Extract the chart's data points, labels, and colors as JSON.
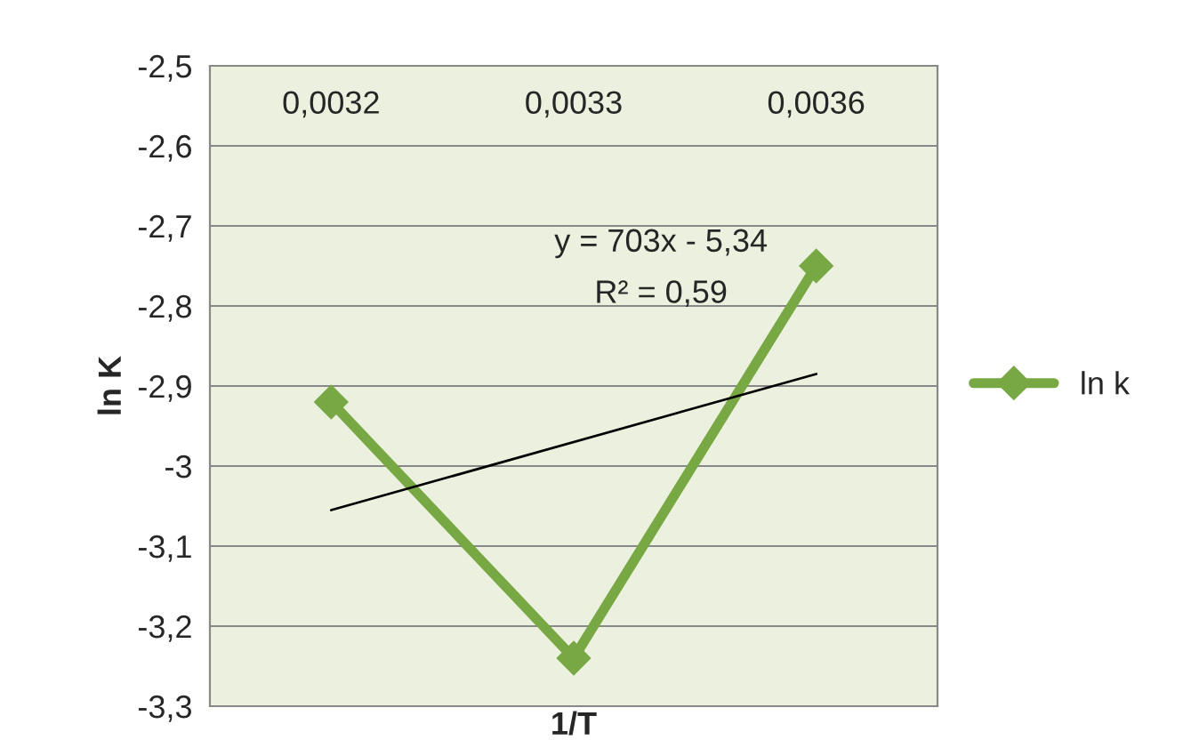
{
  "chart_data": {
    "type": "line",
    "xlabel": "1/T",
    "ylabel": "ln K",
    "categories": [
      "0,0032",
      "0,0033",
      "0,0036"
    ],
    "series": [
      {
        "name": "ln k",
        "color": "#77a843",
        "values": [
          -2.92,
          -3.24,
          -2.75
        ],
        "marker": "diamond",
        "line_style": "solid"
      },
      {
        "type": "line",
        "color": "#000000",
        "x": [
          "0,0032",
          "0,0036"
        ],
        "values": [
          -3.055,
          -2.885
        ],
        "marker": "none",
        "line_style": "solid"
      }
    ],
    "ylim": [
      -3.3,
      -2.5
    ],
    "yticks": [
      {
        "value": -3.3,
        "label": "-3,3"
      },
      {
        "value": -3.2,
        "label": "-3,2"
      },
      {
        "value": -3.1,
        "label": "-3,1"
      },
      -3,
      {
        "value": -2.9,
        "label": "-2,9"
      },
      {
        "value": -2.8,
        "label": "-2,8"
      },
      {
        "value": -2.7,
        "label": "-2,7"
      },
      {
        "value": -2.6,
        "label": "-2,6"
      },
      {
        "value": -2.5,
        "label": "-2,5"
      }
    ],
    "grid": "y",
    "legend": "right",
    "annotations": [
      "y = 703x - 5,34",
      "R² = 0,59"
    ]
  }
}
